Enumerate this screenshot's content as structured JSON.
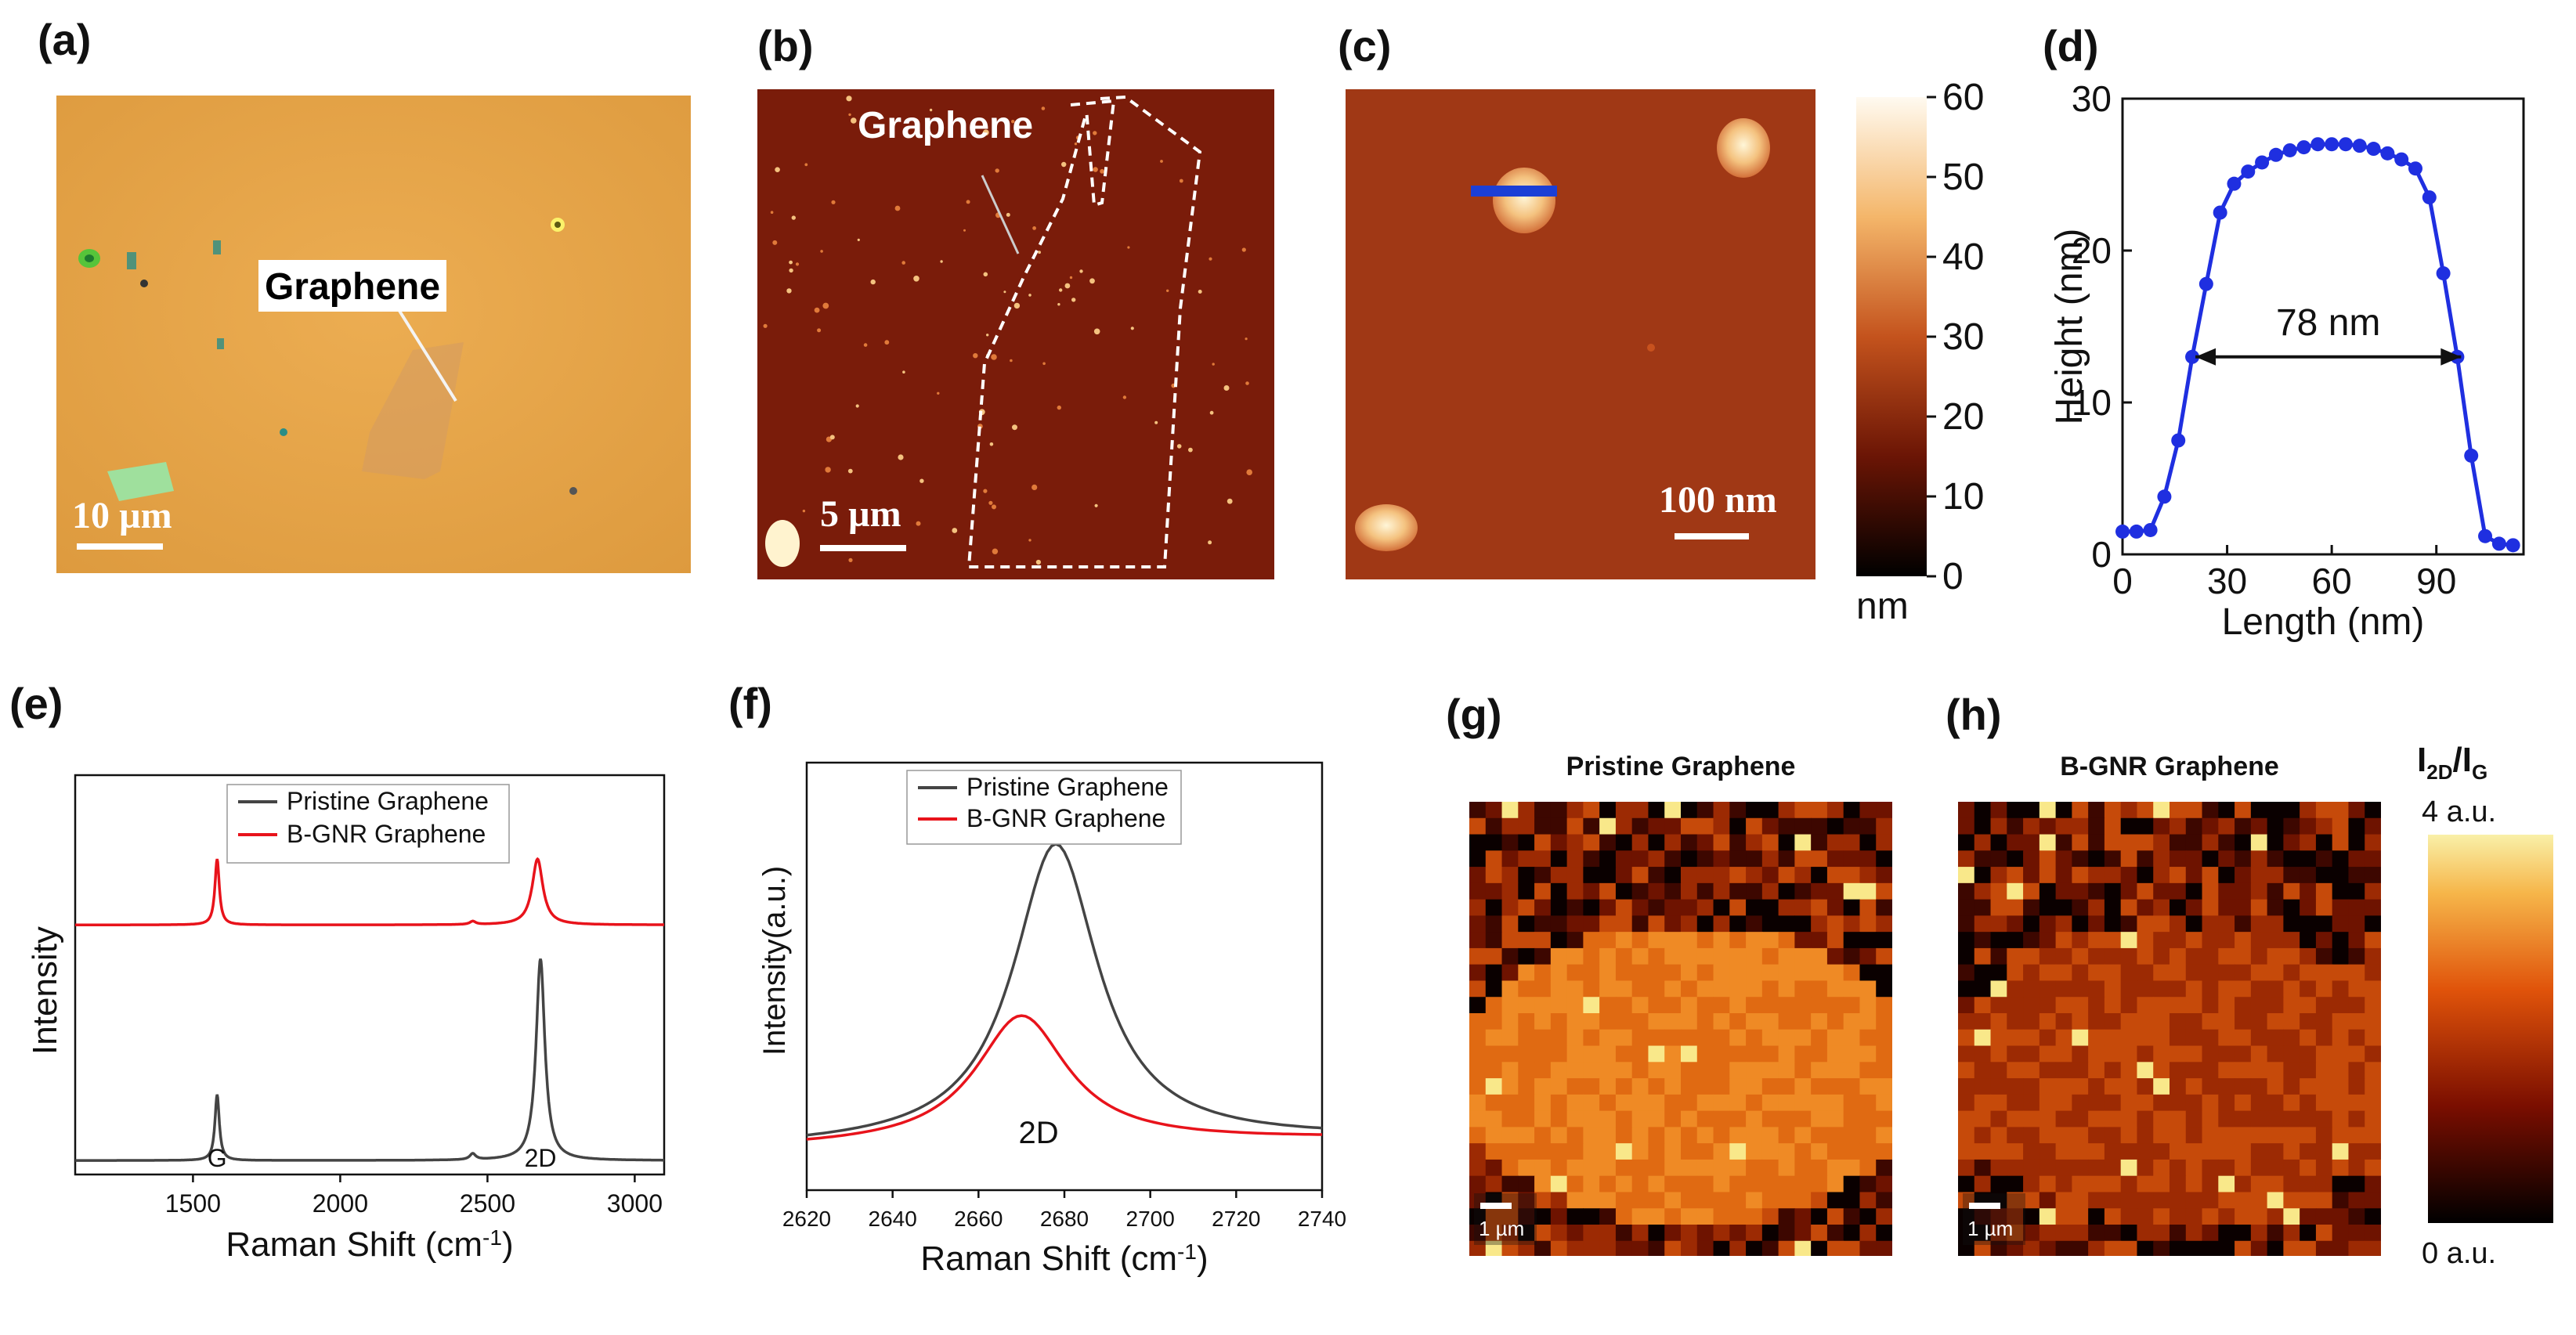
{
  "panels": {
    "a": {
      "label": "(a)",
      "annotation": "Graphene",
      "scalebar": "10 µm"
    },
    "b": {
      "label": "(b)",
      "annotation": "Graphene",
      "scalebar": "5 µm"
    },
    "c": {
      "label": "(c)",
      "scalebar": "100 nm",
      "colorbar": {
        "ticks": [
          "60",
          "50",
          "40",
          "30",
          "20",
          "10",
          "0"
        ],
        "unit": "nm"
      }
    },
    "d": {
      "label": "(d)",
      "annotation": "78 nm"
    },
    "e": {
      "label": "(e)",
      "peak_labels": [
        "G",
        "2D"
      ]
    },
    "f": {
      "label": "(f)",
      "peak_label": "2D"
    },
    "g": {
      "label": "(g)",
      "title": "Pristine Graphene",
      "scalebar": "1 µm"
    },
    "h": {
      "label": "(h)",
      "title": "B-GNR Graphene",
      "scalebar": "1 µm",
      "colorbar": {
        "title": "I2D/IG",
        "title_main": "I",
        "title_sub1": "2D",
        "title_sep": "/I",
        "title_sub2": "G",
        "max": "4 a.u.",
        "min": "0 a.u."
      }
    }
  },
  "colors": {
    "pristine": "#444444",
    "bgnr": "#e8131b",
    "afm_line": "#1b3fd6",
    "height_curve": "#1f2fe0"
  },
  "chart_data": [
    {
      "id": "d",
      "type": "line",
      "title": "",
      "xlabel": "Length (nm)",
      "ylabel": "Height (nm)",
      "xlim": [
        0,
        115
      ],
      "ylim": [
        0,
        30
      ],
      "xticks": [
        0,
        30,
        60,
        90
      ],
      "yticks": [
        0,
        10,
        20,
        30
      ],
      "x": [
        0,
        4,
        8,
        12,
        16,
        20,
        24,
        28,
        32,
        36,
        40,
        44,
        48,
        52,
        56,
        60,
        64,
        68,
        72,
        76,
        80,
        84,
        88,
        92,
        96,
        100,
        104,
        108,
        112
      ],
      "y": [
        1.5,
        1.5,
        1.6,
        3.8,
        7.5,
        13,
        17.8,
        22.5,
        24.4,
        25.2,
        25.8,
        26.3,
        26.6,
        26.8,
        27,
        27,
        27,
        26.9,
        26.7,
        26.4,
        26,
        25.4,
        23.5,
        18.5,
        13,
        6.5,
        1.2,
        0.7,
        0.6
      ],
      "annotation": {
        "text": "78 nm",
        "x_from": 20,
        "x_to": 98,
        "y": 13
      }
    },
    {
      "id": "e",
      "type": "line",
      "xlabel": "Raman Shift",
      "xlabel_unit_pre": "(cm",
      "xlabel_unit_sup": "-1",
      "xlabel_unit_post": ")",
      "ylabel": "Intensity",
      "xlim": [
        1100,
        3100
      ],
      "xticks": [
        1500,
        2000,
        2500,
        3000
      ],
      "legend": "top-center",
      "series": [
        {
          "name": "Pristine Graphene",
          "offset": 0,
          "peaks": [
            {
              "x": 1582,
              "w": 9,
              "h": 0.165
            },
            {
              "x": 2450,
              "w": 12,
              "h": 0.015
            },
            {
              "x": 2680,
              "w": 18,
              "h": 0.505
            }
          ]
        },
        {
          "name": "B-GNR Graphene",
          "offset": 0.59,
          "peaks": [
            {
              "x": 1582,
              "w": 9,
              "h": 0.165
            },
            {
              "x": 2450,
              "w": 12,
              "h": 0.008
            },
            {
              "x": 2670,
              "w": 22,
              "h": 0.165
            }
          ]
        }
      ]
    },
    {
      "id": "f",
      "type": "line",
      "xlabel": "Raman Shift",
      "xlabel_unit_pre": "(cm",
      "xlabel_unit_sup": "-1",
      "xlabel_unit_post": ")",
      "ylabel": "Intensity(a.u.)",
      "xlim": [
        2620,
        2740
      ],
      "xticks": [
        2620,
        2640,
        2660,
        2680,
        2700,
        2720,
        2740
      ],
      "legend": "top-center",
      "series": [
        {
          "name": "Pristine Graphene",
          "peak_x": 2678,
          "base": 0.1,
          "amp": 0.7,
          "width": 12,
          "tilt": 0.02
        },
        {
          "name": "B-GNR Graphene",
          "peak_x": 2670,
          "base": 0.1,
          "amp": 0.3,
          "width": 13,
          "tilt": 0.02
        }
      ]
    }
  ]
}
